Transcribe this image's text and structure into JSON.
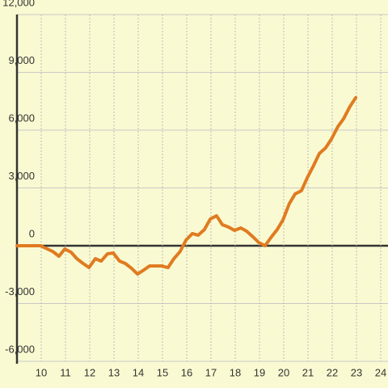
{
  "chart_data": {
    "type": "line",
    "x": [
      9.0,
      9.97,
      10.47,
      10.73,
      10.97,
      11.23,
      11.47,
      11.73,
      11.97,
      12.23,
      12.47,
      12.73,
      12.97,
      13.23,
      13.47,
      13.73,
      13.97,
      14.23,
      14.47,
      14.73,
      14.97,
      15.23,
      15.47,
      15.73,
      15.97,
      16.23,
      16.47,
      16.73,
      16.97,
      17.23,
      17.47,
      17.73,
      17.97,
      18.23,
      18.47,
      18.73,
      18.97,
      19.23,
      19.47,
      19.73,
      19.97,
      20.23,
      20.47,
      20.73,
      20.97,
      21.23,
      21.47,
      21.73,
      21.97,
      22.23,
      22.47,
      22.73,
      22.97
    ],
    "values": [
      0,
      0,
      -294,
      -546,
      -168,
      -336,
      -672,
      -924,
      -1134,
      -672,
      -798,
      -420,
      -378,
      -798,
      -924,
      -1176,
      -1470,
      -1260,
      -1050,
      -1050,
      -1050,
      -1134,
      -672,
      -294,
      294,
      630,
      546,
      840,
      1386,
      1554,
      1092,
      966,
      798,
      924,
      756,
      462,
      168,
      0,
      420,
      840,
      1344,
      2184,
      2688,
      2856,
      3528,
      4158,
      4788,
      5082,
      5544,
      6174,
      6594,
      7224,
      7686
    ],
    "color": "#e07b20",
    "xlim": [
      9,
      24.3
    ],
    "xticks": [
      10,
      11,
      12,
      13,
      14,
      15,
      16,
      17,
      18,
      19,
      20,
      21,
      22,
      23,
      24
    ],
    "ylim": [
      -6000,
      12000
    ],
    "yticks": [
      {
        "value": -6000,
        "label": "-6,000"
      },
      {
        "value": -3000,
        "label": "-3,000"
      },
      0,
      {
        "value": 3000,
        "label": "3,000"
      },
      {
        "value": 6000,
        "label": "6,000"
      },
      {
        "value": 9000,
        "label": "9,000"
      },
      {
        "value": 12000,
        "label": "12,000"
      }
    ],
    "grid": true
  }
}
